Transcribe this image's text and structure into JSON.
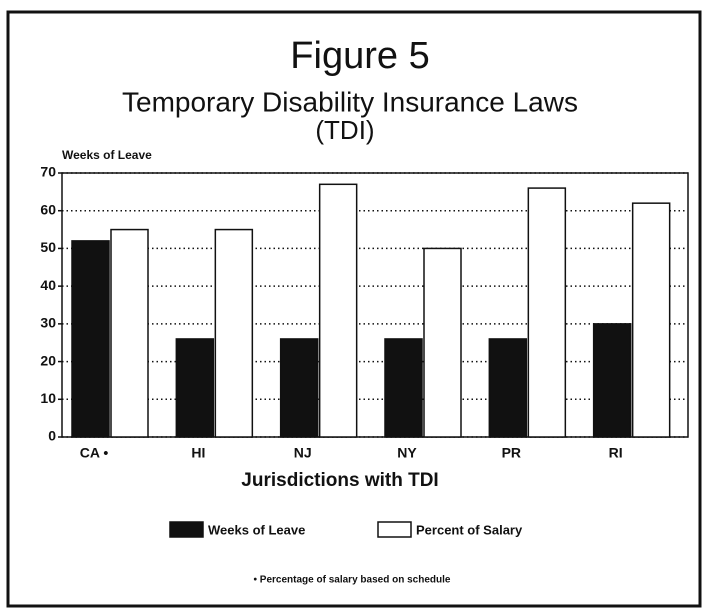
{
  "chart_data": {
    "type": "bar",
    "title": "Figure 5",
    "subtitle": "Temporary Disability Insurance Laws",
    "subtitle2": "(TDI)",
    "y_label": "Weeks of Leave",
    "x_label": "Jurisdictions with TDI",
    "footnote": "• Percentage of salary based on schedule",
    "categories": [
      "CA •",
      "HI",
      "NJ",
      "NY",
      "PR",
      "RI"
    ],
    "series": [
      {
        "name": "Weeks of Leave",
        "color": "#111111",
        "values": [
          52,
          26,
          26,
          26,
          26,
          30
        ]
      },
      {
        "name": "Percent of Salary",
        "color": "#ffffff",
        "values": [
          55,
          55,
          67,
          50,
          66,
          62
        ]
      }
    ],
    "ylim": [
      0,
      70
    ],
    "yticks": [
      0,
      10,
      20,
      30,
      40,
      50,
      60,
      70
    ],
    "grid": true
  }
}
